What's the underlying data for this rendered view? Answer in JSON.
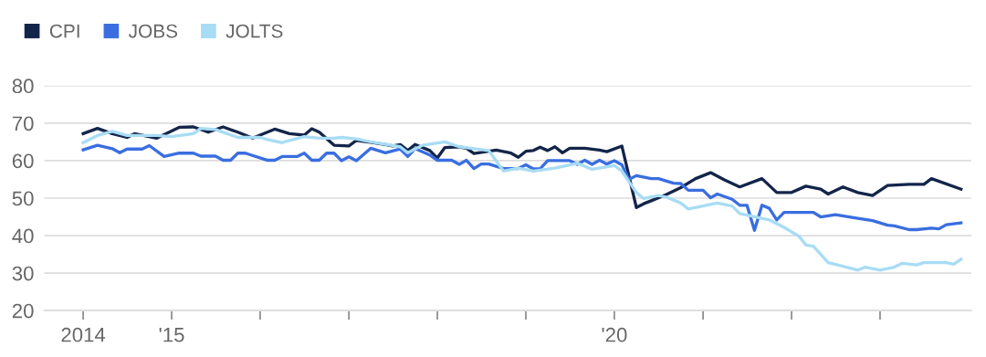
{
  "chart_data": {
    "type": "line",
    "xlim": [
      "2013-07-25",
      "2024-01-12"
    ],
    "ylim": [
      20,
      80
    ],
    "yticks": [
      20,
      30,
      40,
      50,
      60,
      70,
      80
    ],
    "xticks": [
      {
        "value": "2014",
        "label": "2014"
      },
      {
        "value": "2015",
        "label": "'15"
      },
      {
        "value": "2016",
        "label": null
      },
      {
        "value": "2017",
        "label": null
      },
      {
        "value": "2018",
        "label": null
      },
      {
        "value": "2019",
        "label": null
      },
      {
        "value": "2020",
        "label": "'20"
      },
      {
        "value": "2021",
        "label": null
      },
      {
        "value": "2022",
        "label": null
      },
      {
        "value": "2023",
        "label": null
      }
    ],
    "grid": "y",
    "legend": "top left",
    "marker": "none",
    "line_style": "solid",
    "series": [
      {
        "name": "CPI",
        "color": "#13254a",
        "x": [
          "2014-01",
          "2014-03",
          "2014-05",
          "2014-07",
          "2014-08",
          "2014-11",
          "2015-02",
          "2015-04",
          "2015-06",
          "2015-08",
          "2015-10",
          "2015-12",
          "2016-03",
          "2016-05",
          "2016-07",
          "2016-08",
          "2016-09",
          "2016-11",
          "2017-01",
          "2017-02",
          "2017-04",
          "2017-06",
          "2017-07",
          "2017-08",
          "2017-09",
          "2017-10",
          "2017-12",
          "2018-01",
          "2018-02",
          "2018-04",
          "2018-05",
          "2018-06",
          "2018-08",
          "2018-09",
          "2018-11",
          "2018-12",
          "2019-01",
          "2019-02",
          "2019-03",
          "2019-04",
          "2019-05",
          "2019-06",
          "2019-07",
          "2019-09",
          "2019-11",
          "2019-12",
          "2020-02",
          "2020-04",
          "2020-05",
          "2020-06",
          "2020-08",
          "2020-10",
          "2020-12",
          "2021-02",
          "2021-04",
          "2021-06",
          "2021-09",
          "2021-11",
          "2022-01",
          "2022-03",
          "2022-05",
          "2022-06",
          "2022-08",
          "2022-10",
          "2022-12",
          "2023-02",
          "2023-05",
          "2023-07",
          "2023-08",
          "2023-12"
        ],
        "values": [
          67.2,
          68.6,
          67.2,
          66.2,
          67.2,
          66.0,
          68.9,
          69.0,
          67.6,
          69.0,
          67.6,
          66.0,
          68.4,
          67.2,
          66.8,
          68.5,
          67.6,
          64.1,
          63.9,
          65.4,
          64.9,
          64.3,
          63.9,
          64.3,
          62.7,
          64.3,
          62.7,
          60.7,
          63.5,
          63.7,
          63.3,
          61.9,
          62.5,
          62.8,
          62.0,
          60.9,
          62.5,
          62.7,
          63.6,
          62.7,
          63.7,
          62.1,
          63.3,
          63.3,
          62.8,
          62.4,
          63.9,
          47.5,
          48.5,
          49.3,
          50.9,
          52.8,
          55.2,
          56.8,
          54.8,
          53.0,
          55.2,
          51.5,
          51.5,
          53.2,
          52.4,
          51.1,
          53.0,
          51.5,
          50.7,
          53.4,
          53.7,
          53.7,
          55.2,
          52.4
        ]
      },
      {
        "name": "JOBS",
        "color": "#3a6ee0",
        "x": [
          "2014-01",
          "2014-03",
          "2014-05",
          "2014-06",
          "2014-07",
          "2014-09",
          "2014-10",
          "2014-12",
          "2015-02",
          "2015-04",
          "2015-05",
          "2015-07",
          "2015-08",
          "2015-09",
          "2015-10",
          "2015-11",
          "2016-02",
          "2016-03",
          "2016-04",
          "2016-06",
          "2016-07",
          "2016-08",
          "2016-09",
          "2016-10",
          "2016-11",
          "2016-12",
          "2017-01",
          "2017-02",
          "2017-04",
          "2017-06",
          "2017-08",
          "2017-09",
          "2017-10",
          "2017-12",
          "2018-01",
          "2018-03",
          "2018-04",
          "2018-05",
          "2018-06",
          "2018-07",
          "2018-08",
          "2018-10",
          "2018-12",
          "2019-01",
          "2019-02",
          "2019-03",
          "2019-04",
          "2019-07",
          "2019-08",
          "2019-09",
          "2019-10",
          "2019-11",
          "2019-12",
          "2020-01",
          "2020-02",
          "2020-03",
          "2020-04",
          "2020-06",
          "2020-07",
          "2020-09",
          "2020-10",
          "2020-11",
          "2021-01",
          "2021-02",
          "2021-03",
          "2021-05",
          "2021-06",
          "2021-07",
          "2021-08",
          "2021-09",
          "2021-10",
          "2021-11",
          "2021-12",
          "2022-04",
          "2022-05",
          "2022-07",
          "2022-10",
          "2022-12",
          "2023-02",
          "2023-03",
          "2023-05",
          "2023-06",
          "2023-08",
          "2023-09",
          "2023-10",
          "2023-12"
        ],
        "values": [
          62.9,
          64.1,
          63.2,
          62.1,
          63.1,
          63.1,
          64.0,
          61.1,
          62.0,
          62.0,
          61.2,
          61.2,
          60.1,
          60.1,
          62.0,
          62.0,
          60.1,
          60.1,
          61.1,
          61.1,
          62.0,
          60.1,
          60.1,
          62.0,
          62.0,
          60.0,
          61.0,
          60.0,
          63.3,
          62.1,
          63.1,
          61.1,
          63.2,
          61.5,
          60.1,
          60.1,
          59.0,
          60.1,
          57.9,
          59.1,
          59.1,
          57.9,
          57.9,
          58.9,
          57.8,
          57.8,
          60.0,
          60.0,
          59.0,
          60.1,
          59.0,
          60.1,
          59.1,
          60.0,
          58.9,
          55.0,
          56.0,
          55.2,
          55.2,
          54.0,
          53.9,
          52.1,
          52.1,
          50.1,
          51.1,
          49.7,
          48.1,
          48.1,
          41.4,
          48.1,
          47.3,
          44.2,
          46.2,
          46.2,
          45.0,
          45.6,
          44.6,
          44.0,
          42.8,
          42.6,
          41.6,
          41.6,
          42.0,
          41.8,
          42.9,
          43.4
        ]
      },
      {
        "name": "JOLTS",
        "color": "#a8dcf5",
        "x": [
          "2014-01",
          "2014-03",
          "2014-05",
          "2014-07",
          "2014-09",
          "2014-11",
          "2015-01",
          "2015-04",
          "2015-05",
          "2015-07",
          "2015-10",
          "2016-01",
          "2016-02",
          "2016-04",
          "2016-05",
          "2016-07",
          "2016-09",
          "2016-11",
          "2016-12",
          "2017-02",
          "2017-04",
          "2017-08",
          "2017-09",
          "2017-11",
          "2018-02",
          "2018-04",
          "2018-08",
          "2018-10",
          "2018-12",
          "2019-02",
          "2019-05",
          "2019-08",
          "2019-10",
          "2020-01",
          "2020-02",
          "2020-04",
          "2020-05",
          "2020-07",
          "2020-08",
          "2020-10",
          "2020-11",
          "2021-02",
          "2021-03",
          "2021-05",
          "2021-06",
          "2021-10",
          "2021-12",
          "2022-02",
          "2022-03",
          "2022-04",
          "2022-06",
          "2022-08",
          "2022-10",
          "2022-11",
          "2023-01",
          "2023-03",
          "2023-04",
          "2023-06",
          "2023-07",
          "2023-10",
          "2023-11",
          "2023-12"
        ],
        "values": [
          64.8,
          66.7,
          67.8,
          66.7,
          66.7,
          66.7,
          66.4,
          67.2,
          68.6,
          68.3,
          66.2,
          66.2,
          65.6,
          64.8,
          65.4,
          66.4,
          66.0,
          66.0,
          66.2,
          65.8,
          65.0,
          63.7,
          62.1,
          64.1,
          65.0,
          63.7,
          62.7,
          57.2,
          58.0,
          57.2,
          58.0,
          59.3,
          57.7,
          58.7,
          57.2,
          51.5,
          49.9,
          50.7,
          50.3,
          48.7,
          47.1,
          48.3,
          48.7,
          47.9,
          45.9,
          44.2,
          42.2,
          39.8,
          37.5,
          37.2,
          32.8,
          31.8,
          30.8,
          31.6,
          30.8,
          31.6,
          32.6,
          32.2,
          32.8,
          32.8,
          32.4,
          33.7
        ]
      }
    ]
  }
}
